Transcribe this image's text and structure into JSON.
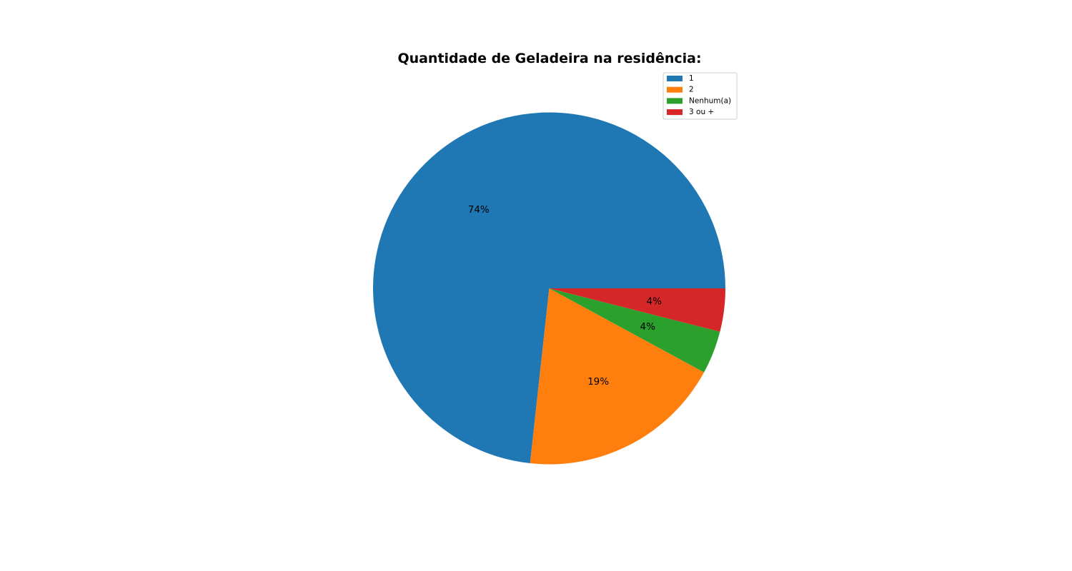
{
  "chart_data": {
    "type": "pie",
    "title": "Quantidade de Geladeira na residência:",
    "categories": [
      "1",
      "2",
      "Nenhum(a)",
      "3 ou +"
    ],
    "values": [
      74,
      19,
      4,
      4
    ],
    "labels": [
      "74%",
      "19%",
      "4%",
      "4%"
    ],
    "colors": [
      "#1f77b4",
      "#ff7f0e",
      "#2ca02c",
      "#d62728"
    ],
    "start_angle_deg": 0,
    "direction": "counterclockwise",
    "legend_position": "top-right"
  }
}
